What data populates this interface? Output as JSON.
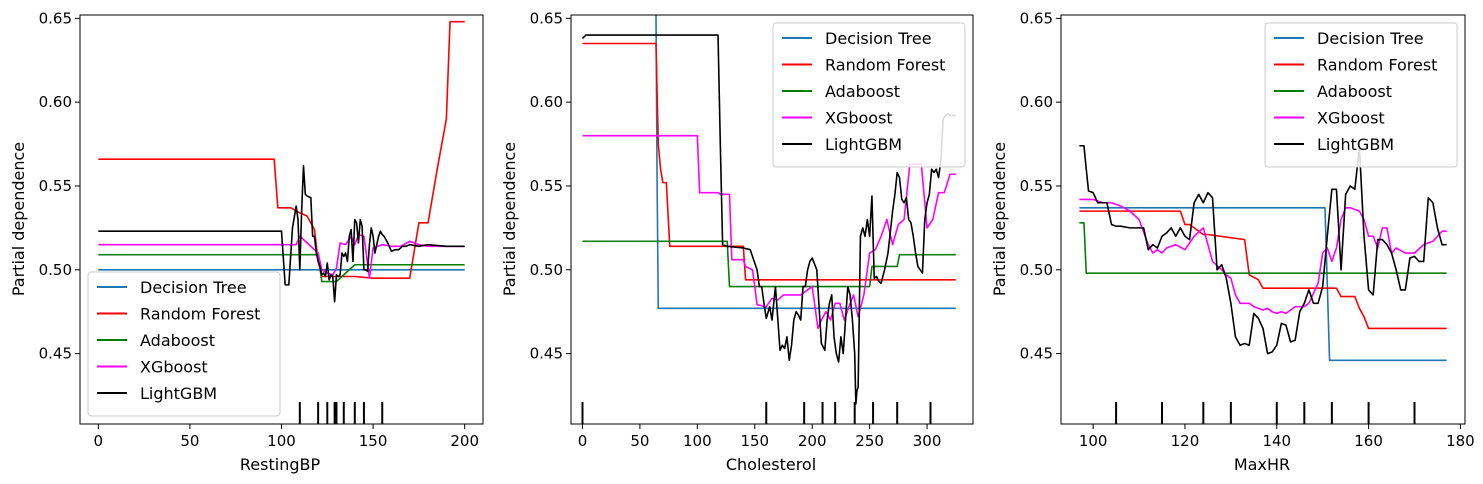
{
  "colors": {
    "Decision Tree": "#1f77b4",
    "Random Forest": "#ff0000",
    "Adaboost": "#008000",
    "XGboost": "#ff00ff",
    "LightGBM": "#000000"
  },
  "chart_data": [
    {
      "type": "line",
      "xlabel": "RestingBP",
      "ylabel": "Partial dependence",
      "xlim": [
        -10,
        210
      ],
      "ylim": [
        0.408,
        0.652
      ],
      "xticks": [
        0,
        50,
        100,
        150,
        200
      ],
      "yticks": [
        0.45,
        0.5,
        0.55,
        0.6,
        0.65
      ],
      "ytick_labels": [
        "0.45",
        "0.50",
        "0.55",
        "0.60",
        "0.65"
      ],
      "legend_position": "lower-left",
      "rug": [
        110,
        120,
        125,
        129,
        130,
        134,
        140,
        145,
        155
      ],
      "series": [
        {
          "name": "Decision Tree",
          "x": [
            0,
            200
          ],
          "y": [
            0.5,
            0.5
          ]
        },
        {
          "name": "Random Forest",
          "x": [
            0,
            96,
            98,
            105,
            110,
            114,
            118,
            120,
            122,
            124,
            130,
            140,
            150,
            160,
            165,
            170,
            175,
            180,
            185,
            190,
            192,
            195,
            200
          ],
          "y": [
            0.566,
            0.566,
            0.537,
            0.537,
            0.534,
            0.532,
            0.524,
            0.505,
            0.496,
            0.496,
            0.496,
            0.496,
            0.495,
            0.495,
            0.495,
            0.495,
            0.528,
            0.528,
            0.56,
            0.59,
            0.648,
            0.648,
            0.648
          ]
        },
        {
          "name": "Adaboost",
          "x": [
            0,
            110,
            120,
            122,
            130,
            140,
            150,
            200
          ],
          "y": [
            0.509,
            0.509,
            0.509,
            0.493,
            0.493,
            0.503,
            0.503,
            0.503
          ]
        },
        {
          "name": "XGboost",
          "x": [
            0,
            108,
            110,
            115,
            120,
            122,
            125,
            128,
            130,
            132,
            135,
            138,
            140,
            142,
            145,
            148,
            150,
            155,
            160,
            165,
            170,
            175,
            180,
            200
          ],
          "y": [
            0.515,
            0.515,
            0.52,
            0.515,
            0.51,
            0.5,
            0.498,
            0.497,
            0.501,
            0.516,
            0.515,
            0.52,
            0.515,
            0.521,
            0.52,
            0.495,
            0.513,
            0.515,
            0.514,
            0.514,
            0.517,
            0.515,
            0.514,
            0.514
          ]
        },
        {
          "name": "LightGBM",
          "x": [
            0,
            100,
            102,
            104,
            106,
            108,
            109,
            110,
            111,
            112,
            113,
            114,
            116,
            117,
            118,
            119,
            120,
            121,
            122,
            123,
            124,
            125,
            126,
            127,
            128,
            129,
            130,
            131,
            132,
            133,
            134,
            135,
            136,
            137,
            138,
            139,
            140,
            141,
            142,
            143,
            144,
            145,
            146,
            147,
            148,
            149,
            150,
            151,
            152,
            153,
            154,
            155,
            156,
            158,
            160,
            162,
            164,
            166,
            168,
            170,
            175,
            180,
            190,
            200
          ],
          "y": [
            0.523,
            0.523,
            0.491,
            0.491,
            0.525,
            0.538,
            0.53,
            0.5,
            0.535,
            0.562,
            0.545,
            0.544,
            0.543,
            0.52,
            0.52,
            0.51,
            0.505,
            0.502,
            0.497,
            0.498,
            0.496,
            0.504,
            0.494,
            0.497,
            0.496,
            0.481,
            0.497,
            0.496,
            0.497,
            0.51,
            0.508,
            0.51,
            0.505,
            0.52,
            0.524,
            0.505,
            0.53,
            0.528,
            0.516,
            0.53,
            0.526,
            0.5,
            0.5,
            0.499,
            0.515,
            0.525,
            0.52,
            0.51,
            0.515,
            0.52,
            0.523,
            0.521,
            0.52,
            0.516,
            0.511,
            0.512,
            0.512,
            0.514,
            0.514,
            0.515,
            0.514,
            0.515,
            0.514,
            0.514
          ]
        }
      ]
    },
    {
      "type": "line",
      "xlabel": "Cholesterol",
      "ylabel": "Partial dependence",
      "xlim": [
        -10,
        340
      ],
      "ylim": [
        0.408,
        0.652
      ],
      "xticks": [
        0,
        50,
        100,
        150,
        200,
        250,
        300
      ],
      "yticks": [
        0.45,
        0.5,
        0.55,
        0.6,
        0.65
      ],
      "ytick_labels": [
        "0.45",
        "0.50",
        "0.55",
        "0.60",
        "0.65"
      ],
      "legend_position": "upper-right",
      "rug": [
        0,
        160,
        193,
        209,
        220,
        237,
        253,
        274,
        303
      ],
      "series": [
        {
          "name": "Decision Tree",
          "x": [
            64,
            65,
            66,
            325
          ],
          "y": [
            0.652,
            0.55,
            0.477,
            0.477
          ]
        },
        {
          "name": "Random Forest",
          "x": [
            0,
            64,
            66,
            68,
            70,
            73,
            76,
            140,
            142,
            160,
            325
          ],
          "y": [
            0.635,
            0.635,
            0.575,
            0.56,
            0.552,
            0.552,
            0.514,
            0.514,
            0.494,
            0.494,
            0.494
          ]
        },
        {
          "name": "Adaboost",
          "x": [
            0,
            126,
            128,
            250,
            252,
            274,
            276,
            325
          ],
          "y": [
            0.517,
            0.517,
            0.49,
            0.49,
            0.502,
            0.502,
            0.509,
            0.509
          ]
        },
        {
          "name": "XGboost",
          "x": [
            0,
            100,
            102,
            118,
            120,
            128,
            130,
            140,
            142,
            148,
            150,
            152,
            154,
            158,
            160,
            165,
            170,
            175,
            180,
            190,
            200,
            205,
            208,
            212,
            216,
            220,
            224,
            228,
            232,
            236,
            240,
            245,
            250,
            255,
            260,
            265,
            270,
            275,
            280,
            285,
            290,
            295,
            300,
            305,
            310,
            315,
            320,
            325
          ],
          "y": [
            0.58,
            0.58,
            0.546,
            0.546,
            0.545,
            0.545,
            0.506,
            0.506,
            0.502,
            0.5,
            0.49,
            0.479,
            0.479,
            0.478,
            0.478,
            0.483,
            0.482,
            0.485,
            0.485,
            0.485,
            0.49,
            0.465,
            0.47,
            0.475,
            0.47,
            0.48,
            0.48,
            0.47,
            0.478,
            0.485,
            0.472,
            0.485,
            0.51,
            0.512,
            0.52,
            0.53,
            0.515,
            0.527,
            0.53,
            0.563,
            0.563,
            0.563,
            0.525,
            0.53,
            0.546,
            0.546,
            0.557,
            0.557
          ]
        },
        {
          "name": "LightGBM",
          "x": [
            0,
            3,
            118,
            120,
            122,
            126,
            140,
            146,
            150,
            152,
            154,
            156,
            158,
            160,
            163,
            165,
            168,
            172,
            174,
            176,
            178,
            180,
            182,
            184,
            186,
            188,
            190,
            192,
            194,
            196,
            198,
            200,
            204,
            208,
            211,
            213,
            215,
            217,
            219,
            221,
            223,
            225,
            227,
            229,
            231,
            233,
            235,
            237,
            238,
            239,
            240,
            242,
            244,
            246,
            248,
            250,
            252,
            254,
            256,
            258,
            260,
            263,
            266,
            270,
            272,
            274,
            276,
            278,
            280,
            282,
            284,
            286,
            288,
            290,
            292,
            294,
            296,
            298,
            300,
            302,
            304,
            306,
            308,
            310,
            312,
            314,
            316,
            318,
            320,
            322,
            325
          ],
          "y": [
            0.638,
            0.64,
            0.64,
            0.575,
            0.515,
            0.514,
            0.513,
            0.512,
            0.504,
            0.5,
            0.49,
            0.49,
            0.48,
            0.471,
            0.478,
            0.47,
            0.49,
            0.452,
            0.455,
            0.453,
            0.46,
            0.446,
            0.455,
            0.47,
            0.475,
            0.473,
            0.47,
            0.49,
            0.49,
            0.5,
            0.505,
            0.507,
            0.5,
            0.456,
            0.452,
            0.47,
            0.48,
            0.485,
            0.46,
            0.45,
            0.445,
            0.46,
            0.45,
            0.47,
            0.49,
            0.485,
            0.47,
            0.45,
            0.42,
            0.428,
            0.43,
            0.52,
            0.525,
            0.52,
            0.53,
            0.52,
            0.544,
            0.495,
            0.496,
            0.493,
            0.492,
            0.5,
            0.51,
            0.535,
            0.545,
            0.558,
            0.555,
            0.542,
            0.54,
            0.543,
            0.53,
            0.528,
            0.52,
            0.51,
            0.502,
            0.5,
            0.498,
            0.53,
            0.54,
            0.545,
            0.56,
            0.558,
            0.56,
            0.555,
            0.565,
            0.59,
            0.592,
            0.593,
            0.592,
            0.592,
            0.592
          ]
        }
      ]
    },
    {
      "type": "line",
      "xlabel": "MaxHR",
      "ylabel": "Partial dependence",
      "xlim": [
        93,
        181
      ],
      "ylim": [
        0.408,
        0.652
      ],
      "xticks": [
        100,
        120,
        140,
        160,
        180
      ],
      "yticks": [
        0.45,
        0.5,
        0.55,
        0.6,
        0.65
      ],
      "ytick_labels": [
        "0.45",
        "0.50",
        "0.55",
        "0.60",
        "0.65"
      ],
      "legend_position": "upper-right",
      "rug": [
        105,
        115,
        124,
        130,
        140,
        146,
        152,
        160,
        170
      ],
      "series": [
        {
          "name": "Decision Tree",
          "x": [
            97,
            150.5,
            151.5,
            177
          ],
          "y": [
            0.537,
            0.537,
            0.446,
            0.446
          ]
        },
        {
          "name": "Random Forest",
          "x": [
            97,
            119,
            120,
            121,
            124,
            125,
            133,
            134,
            136,
            137,
            153,
            154,
            157,
            158,
            159,
            160,
            177
          ],
          "y": [
            0.535,
            0.535,
            0.527,
            0.527,
            0.521,
            0.521,
            0.518,
            0.497,
            0.494,
            0.489,
            0.489,
            0.484,
            0.484,
            0.477,
            0.472,
            0.465,
            0.465
          ]
        },
        {
          "name": "Adaboost",
          "x": [
            97,
            98,
            98.5,
            177
          ],
          "y": [
            0.528,
            0.528,
            0.498,
            0.498
          ]
        },
        {
          "name": "XGboost",
          "x": [
            97,
            100,
            102,
            104,
            106,
            108,
            110,
            112,
            113,
            114,
            115,
            116,
            118,
            120,
            122,
            124,
            126,
            128,
            129,
            130,
            131,
            132,
            133,
            134,
            135,
            136,
            137,
            138,
            139,
            140,
            141,
            142,
            143,
            144,
            145,
            146,
            147,
            148,
            149,
            150,
            151,
            152,
            153,
            154,
            155,
            156,
            157,
            158,
            159,
            160,
            161,
            162,
            163,
            164,
            165,
            166,
            168,
            170,
            172,
            174,
            176,
            177
          ],
          "y": [
            0.542,
            0.542,
            0.54,
            0.54,
            0.538,
            0.535,
            0.53,
            0.515,
            0.51,
            0.512,
            0.51,
            0.513,
            0.515,
            0.512,
            0.52,
            0.525,
            0.505,
            0.5,
            0.497,
            0.495,
            0.485,
            0.48,
            0.48,
            0.48,
            0.478,
            0.477,
            0.476,
            0.477,
            0.475,
            0.474,
            0.475,
            0.474,
            0.476,
            0.478,
            0.478,
            0.478,
            0.48,
            0.486,
            0.492,
            0.51,
            0.513,
            0.505,
            0.513,
            0.53,
            0.537,
            0.537,
            0.536,
            0.535,
            0.53,
            0.52,
            0.52,
            0.513,
            0.525,
            0.525,
            0.51,
            0.513,
            0.51,
            0.51,
            0.515,
            0.517,
            0.523,
            0.523
          ]
        },
        {
          "name": "LightGBM",
          "x": [
            97,
            98,
            98.5,
            99,
            100,
            101,
            102,
            103,
            104,
            105,
            106,
            108,
            110,
            111,
            112,
            113,
            114,
            115,
            116,
            117,
            118,
            119,
            120,
            121,
            122,
            123,
            124,
            125,
            126,
            127,
            128,
            129,
            130,
            131,
            132,
            133,
            134,
            135,
            136,
            137,
            138,
            139,
            140,
            141,
            142,
            143,
            144,
            145,
            146,
            147,
            148,
            149,
            150,
            151,
            152,
            153,
            154,
            155,
            156,
            157,
            158,
            159,
            160,
            161,
            162,
            163,
            164,
            165,
            166,
            167,
            168,
            169,
            170,
            171,
            172,
            173,
            174,
            175,
            176,
            177
          ],
          "y": [
            0.574,
            0.574,
            0.56,
            0.547,
            0.546,
            0.54,
            0.54,
            0.54,
            0.527,
            0.526,
            0.526,
            0.525,
            0.525,
            0.525,
            0.512,
            0.515,
            0.513,
            0.52,
            0.522,
            0.525,
            0.52,
            0.525,
            0.52,
            0.518,
            0.54,
            0.545,
            0.54,
            0.546,
            0.543,
            0.5,
            0.503,
            0.495,
            0.48,
            0.46,
            0.455,
            0.456,
            0.455,
            0.474,
            0.471,
            0.465,
            0.45,
            0.451,
            0.455,
            0.468,
            0.467,
            0.457,
            0.458,
            0.475,
            0.48,
            0.488,
            0.48,
            0.48,
            0.49,
            0.52,
            0.548,
            0.548,
            0.5,
            0.545,
            0.55,
            0.548,
            0.573,
            0.52,
            0.488,
            0.485,
            0.518,
            0.518,
            0.515,
            0.51,
            0.5,
            0.488,
            0.488,
            0.507,
            0.508,
            0.505,
            0.505,
            0.543,
            0.54,
            0.525,
            0.515,
            0.515
          ]
        }
      ]
    }
  ]
}
